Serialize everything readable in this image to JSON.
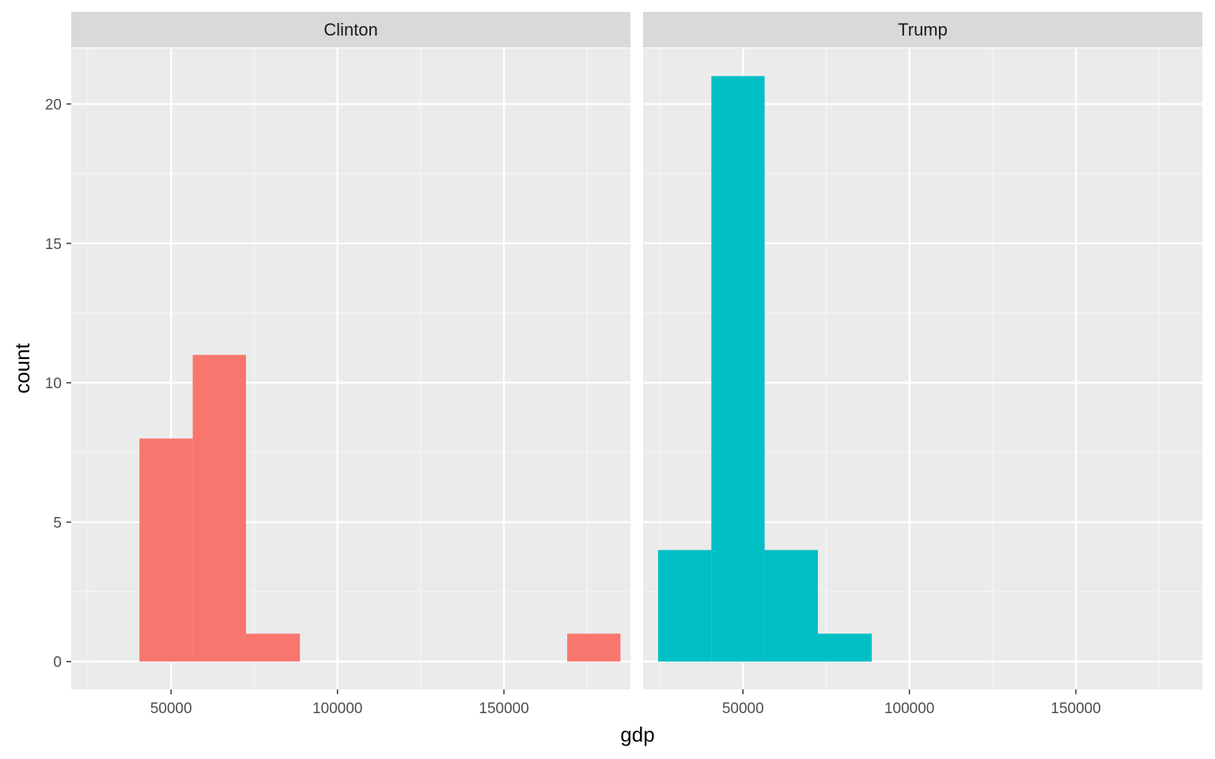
{
  "chart_data": {
    "type": "bar",
    "subtype": "histogram-faceted",
    "xlabel": "gdp",
    "ylabel": "count",
    "xlim": [
      20000,
      188000
    ],
    "ylim": [
      -1,
      22
    ],
    "x_ticks": [
      50000,
      100000,
      150000
    ],
    "x_minor_ticks": [
      25000,
      75000,
      125000,
      175000
    ],
    "y_ticks": [
      0,
      5,
      10,
      15,
      20
    ],
    "y_minor_ticks": [
      2.5,
      7.5,
      12.5,
      17.5
    ],
    "grid": true,
    "legend": "none",
    "panels": [
      {
        "name": "Clinton",
        "color": "#F8766D",
        "bins": [
          {
            "x0": 40500,
            "x1": 56500,
            "count": 8
          },
          {
            "x0": 56500,
            "x1": 72500,
            "count": 11
          },
          {
            "x0": 72500,
            "x1": 88700,
            "count": 1
          },
          {
            "x0": 169000,
            "x1": 185000,
            "count": 1
          }
        ]
      },
      {
        "name": "Trump",
        "color": "#00BFC4",
        "bins": [
          {
            "x0": 24500,
            "x1": 40500,
            "count": 4
          },
          {
            "x0": 40500,
            "x1": 56500,
            "count": 21
          },
          {
            "x0": 56500,
            "x1": 72500,
            "count": 4
          },
          {
            "x0": 72500,
            "x1": 88700,
            "count": 1
          }
        ]
      }
    ]
  }
}
